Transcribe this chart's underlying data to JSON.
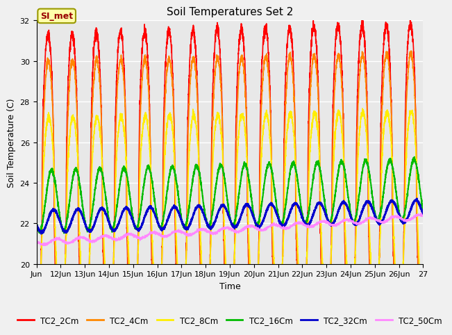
{
  "title": "Soil Temperatures Set 2",
  "ylabel": "Soil Temperature (C)",
  "xlabel": "Time",
  "annotation": "SI_met",
  "ylim": [
    20,
    32
  ],
  "series_names": [
    "TC2_2Cm",
    "TC2_4Cm",
    "TC2_8Cm",
    "TC2_16Cm",
    "TC2_32Cm",
    "TC2_50Cm"
  ],
  "series_colors": [
    "#ff0000",
    "#ff8800",
    "#ffee00",
    "#00bb00",
    "#0000cc",
    "#ff88ff"
  ],
  "background_color": "#e8e8e8",
  "plot_bg_color": "#e8e8e8",
  "grid_color": "#ffffff",
  "title_fontsize": 11,
  "axis_fontsize": 8,
  "legend_fontsize": 8.5,
  "annotation_color": "#990000",
  "annotation_bg": "#ffffaa",
  "annotation_border": "#999900"
}
